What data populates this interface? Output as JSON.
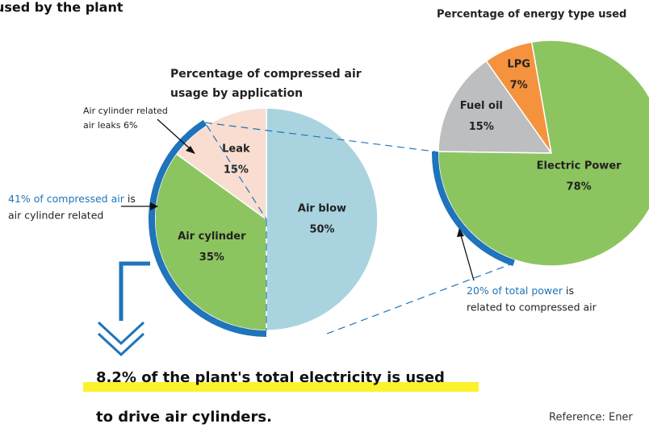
{
  "chart_data": [
    {
      "type": "pie",
      "title": [
        "Percentage of compressed air",
        "usage by application"
      ],
      "categories": [
        "Air blow",
        "Air cylinder",
        "Leak"
      ],
      "values": [
        50,
        35,
        15
      ],
      "value_labels": [
        "50%",
        "35%",
        "15%"
      ],
      "colors": [
        "#a9d4df",
        "#8cc560",
        "#f8ddd0"
      ],
      "highlight": {
        "value": 41,
        "label": "41% of compressed air",
        "color": "#1f74bb"
      }
    },
    {
      "type": "pie",
      "title": "Percentage of energy type used",
      "categories": [
        "LPG",
        "Fuel oil",
        "Electric Power"
      ],
      "values": [
        7,
        15,
        78
      ],
      "value_labels": [
        "7%",
        "15%",
        "78%"
      ],
      "colors": [
        "#f5923e",
        "#bdbec0",
        "#8cc560"
      ],
      "highlight": {
        "value": 20,
        "label": "20% of total power",
        "color": "#1f74bb"
      }
    }
  ],
  "heading": "used by the plant",
  "annotations": {
    "leak_note": [
      "Air cylinder related",
      "air leaks 6%"
    ],
    "compressed_note": [
      "is",
      "air cylinder related"
    ],
    "power_note": [
      "is",
      "related to compressed air"
    ]
  },
  "conclusion": [
    "8.2% of the plant's total electricity is used",
    "to drive air cylinders."
  ],
  "reference": "Reference: Ener"
}
